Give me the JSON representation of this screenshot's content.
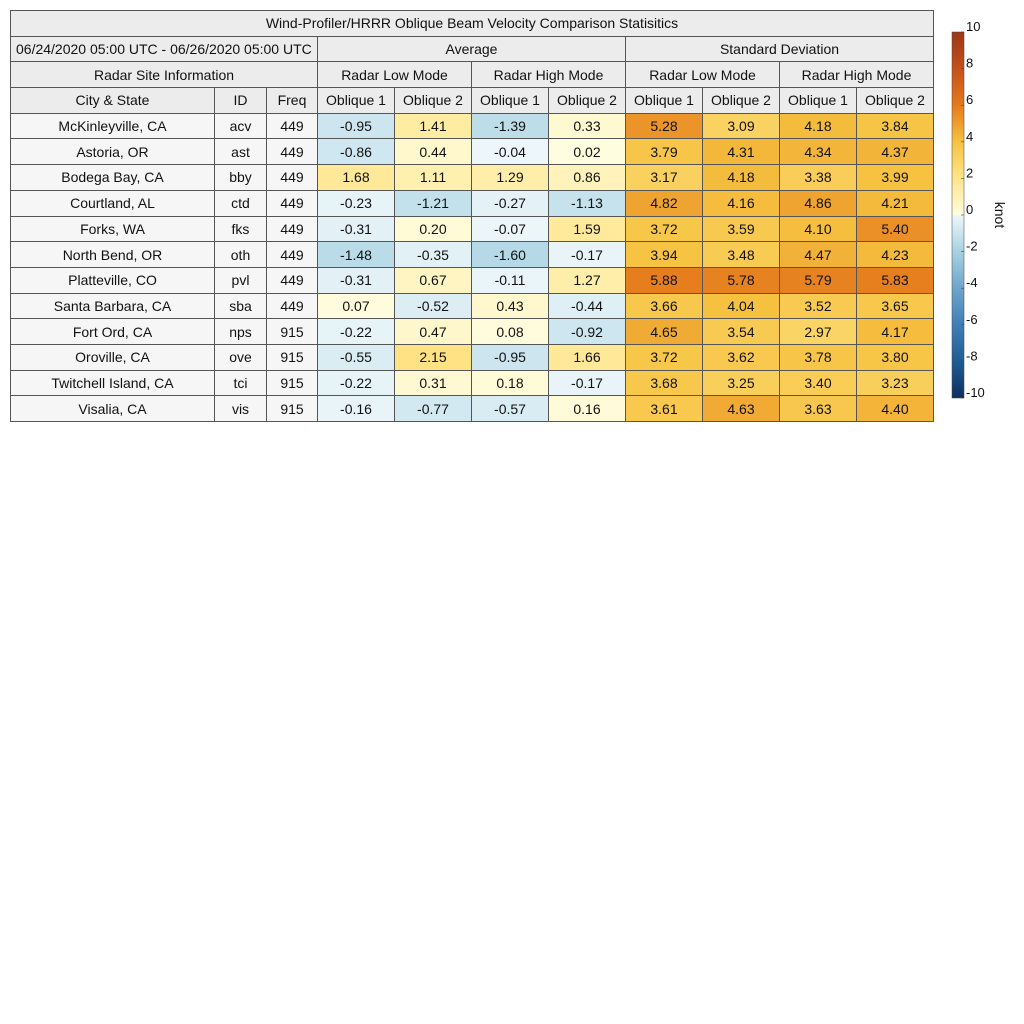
{
  "chart_data": {
    "type": "table",
    "title": "Wind-Profiler/HRRR Oblique Beam Velocity Comparison Statisitics",
    "date_range": "06/24/2020 05:00 UTC - 06/26/2020 05:00 UTC",
    "group_headers": [
      "Average",
      "Standard Deviation"
    ],
    "info_header": "Radar Site Information",
    "mode_headers": [
      "Radar Low Mode",
      "Radar High Mode",
      "Radar Low Mode",
      "Radar High Mode"
    ],
    "column_headers": [
      "City & State",
      "ID",
      "Freq",
      "Oblique 1",
      "Oblique 2",
      "Oblique 1",
      "Oblique 2",
      "Oblique 1",
      "Oblique 2",
      "Oblique 1",
      "Oblique 2"
    ],
    "rows": [
      {
        "city": "McKinleyville, CA",
        "id": "acv",
        "freq": "449",
        "values": [
          "-0.95",
          "1.41",
          "-1.39",
          "0.33",
          "5.28",
          "3.09",
          "4.18",
          "3.84"
        ]
      },
      {
        "city": "Astoria, OR",
        "id": "ast",
        "freq": "449",
        "values": [
          "-0.86",
          "0.44",
          "-0.04",
          "0.02",
          "3.79",
          "4.31",
          "4.34",
          "4.37"
        ]
      },
      {
        "city": "Bodega Bay, CA",
        "id": "bby",
        "freq": "449",
        "values": [
          "1.68",
          "1.11",
          "1.29",
          "0.86",
          "3.17",
          "4.18",
          "3.38",
          "3.99"
        ]
      },
      {
        "city": "Courtland, AL",
        "id": "ctd",
        "freq": "449",
        "values": [
          "-0.23",
          "-1.21",
          "-0.27",
          "-1.13",
          "4.82",
          "4.16",
          "4.86",
          "4.21"
        ]
      },
      {
        "city": "Forks, WA",
        "id": "fks",
        "freq": "449",
        "values": [
          "-0.31",
          "0.20",
          "-0.07",
          "1.59",
          "3.72",
          "3.59",
          "4.10",
          "5.40"
        ]
      },
      {
        "city": "North Bend, OR",
        "id": "oth",
        "freq": "449",
        "values": [
          "-1.48",
          "-0.35",
          "-1.60",
          "-0.17",
          "3.94",
          "3.48",
          "4.47",
          "4.23"
        ]
      },
      {
        "city": "Platteville, CO",
        "id": "pvl",
        "freq": "449",
        "values": [
          "-0.31",
          "0.67",
          "-0.11",
          "1.27",
          "5.88",
          "5.78",
          "5.79",
          "5.83"
        ]
      },
      {
        "city": "Santa Barbara, CA",
        "id": "sba",
        "freq": "449",
        "values": [
          "0.07",
          "-0.52",
          "0.43",
          "-0.44",
          "3.66",
          "4.04",
          "3.52",
          "3.65"
        ]
      },
      {
        "city": "Fort Ord, CA",
        "id": "nps",
        "freq": "915",
        "values": [
          "-0.22",
          "0.47",
          "0.08",
          "-0.92",
          "4.65",
          "3.54",
          "2.97",
          "4.17"
        ]
      },
      {
        "city": "Oroville, CA",
        "id": "ove",
        "freq": "915",
        "values": [
          "-0.55",
          "2.15",
          "-0.95",
          "1.66",
          "3.72",
          "3.62",
          "3.78",
          "3.80"
        ]
      },
      {
        "city": "Twitchell Island, CA",
        "id": "tci",
        "freq": "915",
        "values": [
          "-0.22",
          "0.31",
          "0.18",
          "-0.17",
          "3.68",
          "3.25",
          "3.40",
          "3.23"
        ]
      },
      {
        "city": "Visalia, CA",
        "id": "vis",
        "freq": "915",
        "values": [
          "-0.16",
          "-0.77",
          "-0.57",
          "0.16",
          "3.61",
          "4.63",
          "3.63",
          "4.40"
        ]
      }
    ],
    "colorbar": {
      "label": "knot",
      "range": [
        -10,
        10
      ],
      "ticks": [
        "10",
        "8",
        "6",
        "4",
        "2",
        "0",
        "-2",
        "-4",
        "-6",
        "-8",
        "-10"
      ],
      "tick_values": [
        10,
        8,
        6,
        4,
        2,
        0,
        -2,
        -4,
        -6,
        -8,
        -10
      ]
    },
    "colors": {
      "header_bg": "#ececec",
      "info_bg": "#f6f6f6",
      "scale_stops": [
        [
          -10,
          "#0f2f5e"
        ],
        [
          -8,
          "#1f5c94"
        ],
        [
          -6,
          "#3f7fb6"
        ],
        [
          -4,
          "#6ea5cd"
        ],
        [
          -2,
          "#a7d2e2"
        ],
        [
          0,
          "#eef7fa"
        ],
        [
          0.001,
          "#fffde0"
        ],
        [
          2,
          "#ffe58a"
        ],
        [
          4,
          "#f6c240"
        ],
        [
          6,
          "#e57a1c"
        ],
        [
          8,
          "#c5501a"
        ],
        [
          10,
          "#9e3616"
        ]
      ]
    }
  }
}
